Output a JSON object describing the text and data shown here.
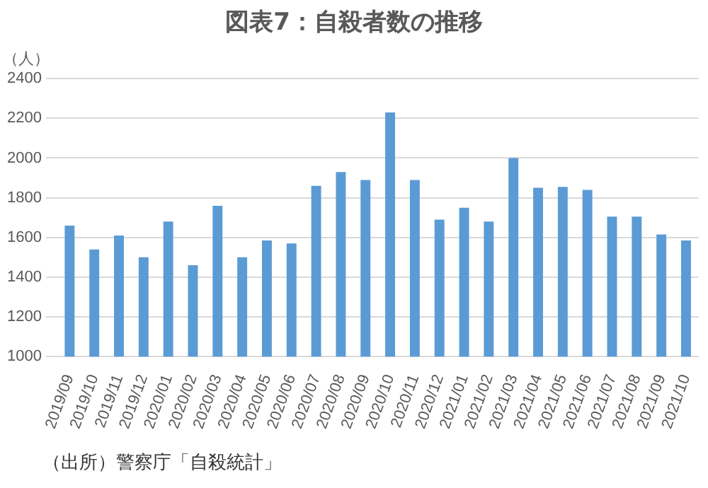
{
  "chart_data": {
    "type": "bar",
    "title": "図表7：自殺者数の推移",
    "ylabel": "（人）",
    "categories": [
      "2019/09",
      "2019/10",
      "2019/11",
      "2019/12",
      "2020/01",
      "2020/02",
      "2020/03",
      "2020/04",
      "2020/05",
      "2020/06",
      "2020/07",
      "2020/08",
      "2020/09",
      "2020/10",
      "2020/11",
      "2020/12",
      "2021/01",
      "2021/02",
      "2021/03",
      "2021/04",
      "2021/05",
      "2021/06",
      "2021/07",
      "2021/08",
      "2021/09",
      "2021/10"
    ],
    "values": [
      1660,
      1540,
      1610,
      1500,
      1680,
      1460,
      1760,
      1500,
      1585,
      1570,
      1860,
      1930,
      1890,
      2230,
      1890,
      1690,
      1750,
      1680,
      2000,
      1850,
      1855,
      1840,
      1705,
      1705,
      1615,
      1585
    ],
    "color": "#5b9bd5",
    "ylim": [
      1000,
      2400
    ],
    "yticks": [
      1000,
      1200,
      1400,
      1600,
      1800,
      2000,
      2200,
      2400
    ],
    "grid": "y",
    "legend": false,
    "annotations": [
      "（出所）警察庁「自殺統計」"
    ]
  }
}
